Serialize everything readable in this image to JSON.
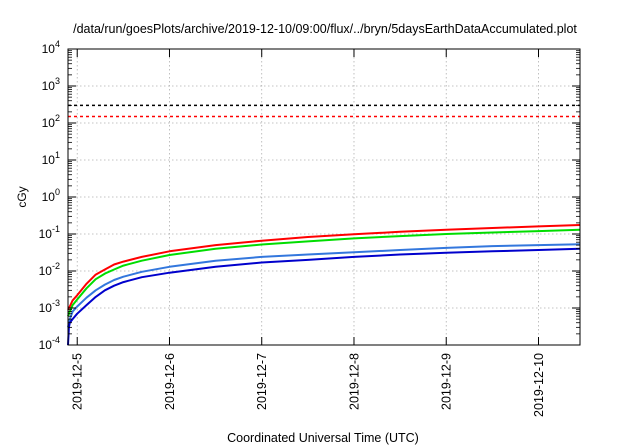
{
  "chart_data": {
    "type": "line",
    "title": "/data/run/goesPlots/archive/2019-12-10/09:00/flux/../bryn/5daysEarthDataAccumulated.plot",
    "xlabel": "Coordinated Universal Time (UTC)",
    "ylabel": "cGy",
    "y_scale": "log",
    "ylim": [
      0.0001,
      10000
    ],
    "xlim": [
      -0.1,
      5.45
    ],
    "x_ticks": [
      {
        "x": 0,
        "label": "2019-12-5"
      },
      {
        "x": 1,
        "label": "2019-12-6"
      },
      {
        "x": 2,
        "label": "2019-12-7"
      },
      {
        "x": 3,
        "label": "2019-12-8"
      },
      {
        "x": 4,
        "label": "2019-12-9"
      },
      {
        "x": 5,
        "label": "2019-12-10"
      }
    ],
    "y_ticks": [
      {
        "v": -4,
        "base": "10",
        "exp": "-4"
      },
      {
        "v": -3,
        "base": "10",
        "exp": "-3"
      },
      {
        "v": -2,
        "base": "10",
        "exp": "-2"
      },
      {
        "v": -1,
        "base": "10",
        "exp": "-1"
      },
      {
        "v": 0,
        "base": "10",
        "exp": "0"
      },
      {
        "v": 1,
        "base": "10",
        "exp": "1"
      },
      {
        "v": 2,
        "base": "10",
        "exp": "2"
      },
      {
        "v": 3,
        "base": "10",
        "exp": "3"
      },
      {
        "v": 4,
        "base": "10",
        "exp": "4"
      }
    ],
    "grid": true,
    "thresholds": [
      {
        "value": 300,
        "color": "#000000",
        "style": "dashed"
      },
      {
        "value": 150,
        "color": "#ff0000",
        "style": "dashed"
      }
    ],
    "series": [
      {
        "color": "#ff0000",
        "x": [
          -0.1,
          -0.08,
          -0.05,
          0,
          0.1,
          0.2,
          0.3,
          0.4,
          0.5,
          0.7,
          1.0,
          1.5,
          2.0,
          2.5,
          3.0,
          3.5,
          4.0,
          4.5,
          5.0,
          5.45
        ],
        "y": [
          0.0009,
          0.0011,
          0.0016,
          0.0022,
          0.0045,
          0.008,
          0.011,
          0.015,
          0.018,
          0.024,
          0.034,
          0.05,
          0.066,
          0.083,
          0.098,
          0.115,
          0.13,
          0.145,
          0.16,
          0.175
        ]
      },
      {
        "color": "#00dd00",
        "x": [
          -0.1,
          -0.08,
          -0.05,
          0,
          0.1,
          0.2,
          0.3,
          0.4,
          0.5,
          0.7,
          1.0,
          1.5,
          2.0,
          2.5,
          3.0,
          3.5,
          4.0,
          4.5,
          5.0,
          5.45
        ],
        "y": [
          0.0006,
          0.0008,
          0.0012,
          0.0017,
          0.0034,
          0.006,
          0.0085,
          0.011,
          0.014,
          0.019,
          0.027,
          0.04,
          0.052,
          0.063,
          0.076,
          0.088,
          0.1,
          0.11,
          0.12,
          0.13
        ]
      },
      {
        "color": "#3377dd",
        "x": [
          -0.1,
          -0.08,
          -0.05,
          0,
          0.1,
          0.2,
          0.3,
          0.4,
          0.5,
          0.7,
          1.0,
          1.5,
          2.0,
          2.5,
          3.0,
          3.5,
          4.0,
          4.5,
          5.0,
          5.45
        ],
        "y": [
          0.0003,
          0.0005,
          0.0008,
          0.0011,
          0.0019,
          0.003,
          0.0043,
          0.0057,
          0.007,
          0.0095,
          0.013,
          0.019,
          0.024,
          0.028,
          0.032,
          0.037,
          0.042,
          0.047,
          0.05,
          0.053
        ]
      },
      {
        "color": "#0000cc",
        "x": [
          -0.1,
          -0.09,
          -0.08,
          -0.05,
          0,
          0.1,
          0.2,
          0.3,
          0.4,
          0.5,
          0.7,
          1.0,
          1.5,
          2.0,
          2.5,
          3.0,
          3.5,
          4.0,
          4.5,
          5.0,
          5.45
        ],
        "y": [
          0.0001,
          0.0003,
          0.0004,
          0.0005,
          0.0007,
          0.0012,
          0.002,
          0.003,
          0.004,
          0.005,
          0.0068,
          0.009,
          0.013,
          0.017,
          0.02,
          0.024,
          0.028,
          0.031,
          0.034,
          0.037,
          0.04
        ]
      }
    ]
  }
}
